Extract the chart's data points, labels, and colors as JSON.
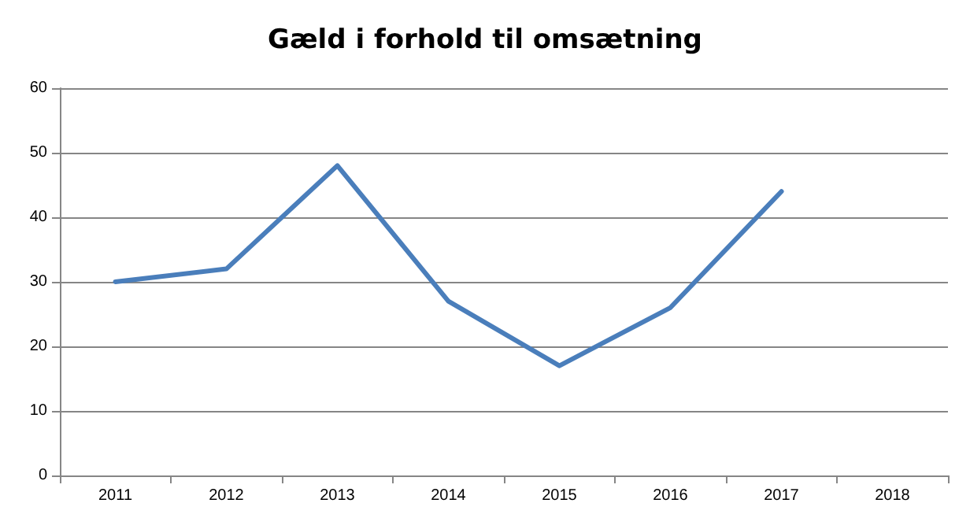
{
  "chart_data": {
    "type": "line",
    "title": "Gæld i forhold til omsætning",
    "categories": [
      "2011",
      "2012",
      "2013",
      "2014",
      "2015",
      "2016",
      "2017",
      "2018"
    ],
    "series": [
      {
        "color": "#4a7ebb",
        "values": [
          30,
          32,
          48,
          27,
          17,
          26,
          44,
          null
        ]
      }
    ],
    "ylim": [
      0,
      60
    ],
    "yticks": [
      0,
      10,
      20,
      30,
      40,
      50,
      60
    ],
    "grid": "y",
    "marker": "none",
    "line_style": "solid"
  }
}
